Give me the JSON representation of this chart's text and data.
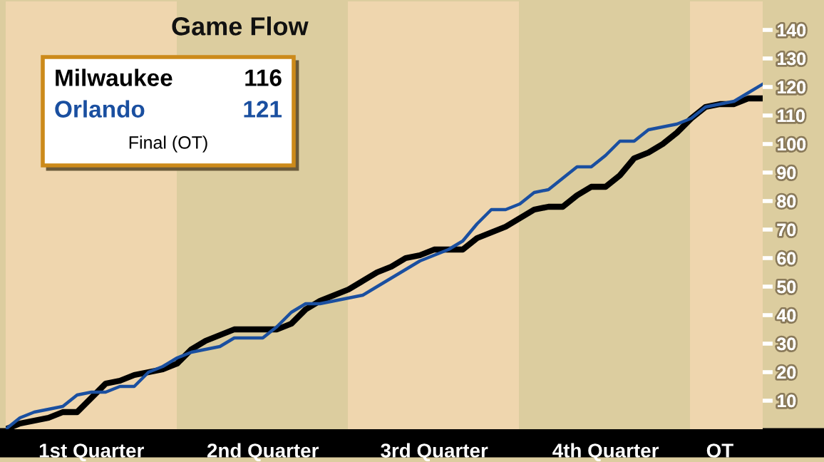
{
  "chart_data": {
    "type": "line",
    "title": "Game Flow",
    "categories": [
      null,
      null,
      null,
      null,
      null,
      null,
      "1st Quarter",
      null,
      null,
      null,
      null,
      null,
      null,
      null,
      null,
      null,
      null,
      null,
      "2nd Quarter",
      null,
      null,
      null,
      null,
      null,
      null,
      null,
      null,
      null,
      null,
      null,
      "3rd Quarter",
      null,
      null,
      null,
      null,
      null,
      null,
      null,
      null,
      null,
      null,
      null,
      "4th Quarter",
      null,
      null,
      null,
      null,
      null,
      null,
      null,
      "OT",
      null,
      null,
      null
    ],
    "ylim": [
      0,
      150
    ],
    "yticks": [
      10,
      20,
      30,
      40,
      50,
      60,
      70,
      80,
      90,
      100,
      110,
      120,
      130,
      140
    ],
    "legend": "top left",
    "annotations": [
      "116",
      "121",
      "Final (OT)"
    ],
    "series": [
      {
        "name": "Milwaukee",
        "color": "#000000",
        "values": [
          0,
          2,
          3,
          4,
          6,
          6,
          11,
          16,
          17,
          19,
          20,
          21,
          23,
          28,
          31,
          33,
          35,
          35,
          35,
          35,
          37,
          42,
          45,
          47,
          49,
          52,
          55,
          57,
          60,
          61,
          63,
          63,
          63,
          67,
          69,
          71,
          74,
          77,
          78,
          78,
          82,
          85,
          85,
          89,
          95,
          97,
          100,
          104,
          109,
          113,
          114,
          114,
          116,
          116
        ]
      },
      {
        "name": "Orlando",
        "color": "#1a4fa0",
        "values": [
          0,
          4,
          6,
          7,
          8,
          12,
          13,
          13,
          15,
          15,
          20,
          22,
          25,
          27,
          28,
          29,
          32,
          32,
          32,
          36,
          41,
          44,
          44,
          45,
          46,
          47,
          50,
          53,
          56,
          59,
          61,
          63,
          66,
          72,
          77,
          77,
          79,
          83,
          84,
          88,
          92,
          92,
          96,
          101,
          101,
          105,
          106,
          107,
          109,
          113,
          114,
          115,
          118,
          121
        ]
      }
    ]
  }
}
